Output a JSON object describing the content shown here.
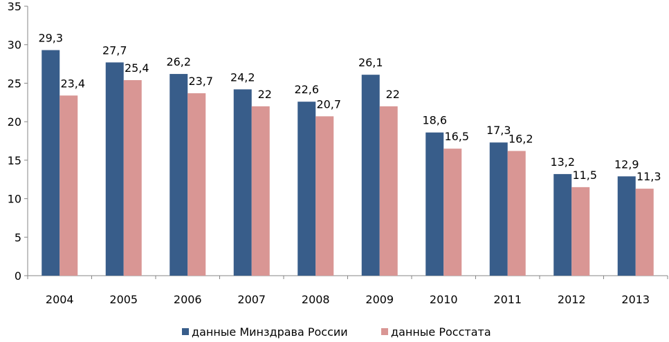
{
  "chart_data": {
    "type": "bar",
    "categories": [
      "2004",
      "2005",
      "2006",
      "2007",
      "2008",
      "2009",
      "2010",
      "2011",
      "2012",
      "2013"
    ],
    "series": [
      {
        "name": "данные Минздрава России",
        "color": "#385D8A",
        "values": [
          29.3,
          27.7,
          26.2,
          24.2,
          22.6,
          26.1,
          18.6,
          17.3,
          13.2,
          12.9
        ],
        "value_labels": [
          "29,3",
          "27,7",
          "26,2",
          "24,2",
          "22,6",
          "26,1",
          "18,6",
          "17,3",
          "13,2",
          "12,9"
        ]
      },
      {
        "name": "данные Росстата",
        "color": "#D99694",
        "values": [
          23.4,
          25.4,
          23.7,
          22,
          20.7,
          22,
          16.5,
          16.2,
          11.5,
          11.3
        ],
        "value_labels": [
          "23,4",
          "25,4",
          "23,7",
          "22",
          "20,7",
          "22",
          "16,5",
          "16,2",
          "11,5",
          "11,3"
        ]
      }
    ],
    "ylim": [
      0,
      35
    ],
    "yticks": [
      "0",
      "5",
      "10",
      "15",
      "20",
      "25",
      "30",
      "35"
    ],
    "grid": false,
    "legend_position": "bottom",
    "title": "",
    "xlabel": "",
    "ylabel": ""
  }
}
